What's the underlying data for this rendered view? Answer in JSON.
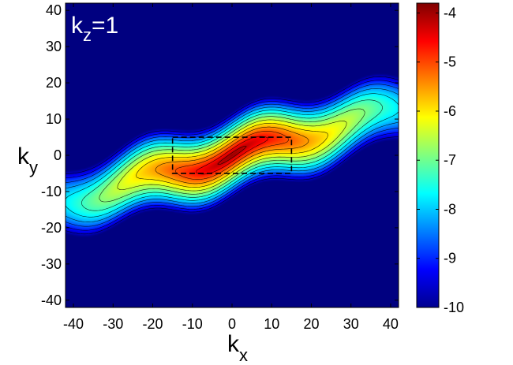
{
  "chart_data": {
    "type": "heatmap",
    "annotation": {
      "main": "k",
      "sub": "z",
      "rest": "=1"
    },
    "xlabel": {
      "main": "k",
      "sub": "x"
    },
    "ylabel": {
      "main": "k",
      "sub": "y"
    },
    "xlim": [
      -42,
      42
    ],
    "ylim": [
      -42,
      42
    ],
    "xticks": [
      -40,
      -30,
      -20,
      -10,
      0,
      10,
      20,
      30,
      40
    ],
    "yticks": [
      40,
      30,
      20,
      10,
      0,
      -10,
      -20,
      -30,
      -40
    ],
    "colorbar": {
      "min": -10,
      "max": -3.8,
      "ticks": [
        -4,
        -5,
        -6,
        -7,
        -8,
        -9,
        -10
      ]
    },
    "colormap": "jet",
    "contours": true,
    "peak": {
      "x": 0,
      "y": 0,
      "value": -3.9
    },
    "dashed_box": {
      "x": [
        -15,
        15
      ],
      "y": [
        -5,
        5
      ]
    }
  }
}
